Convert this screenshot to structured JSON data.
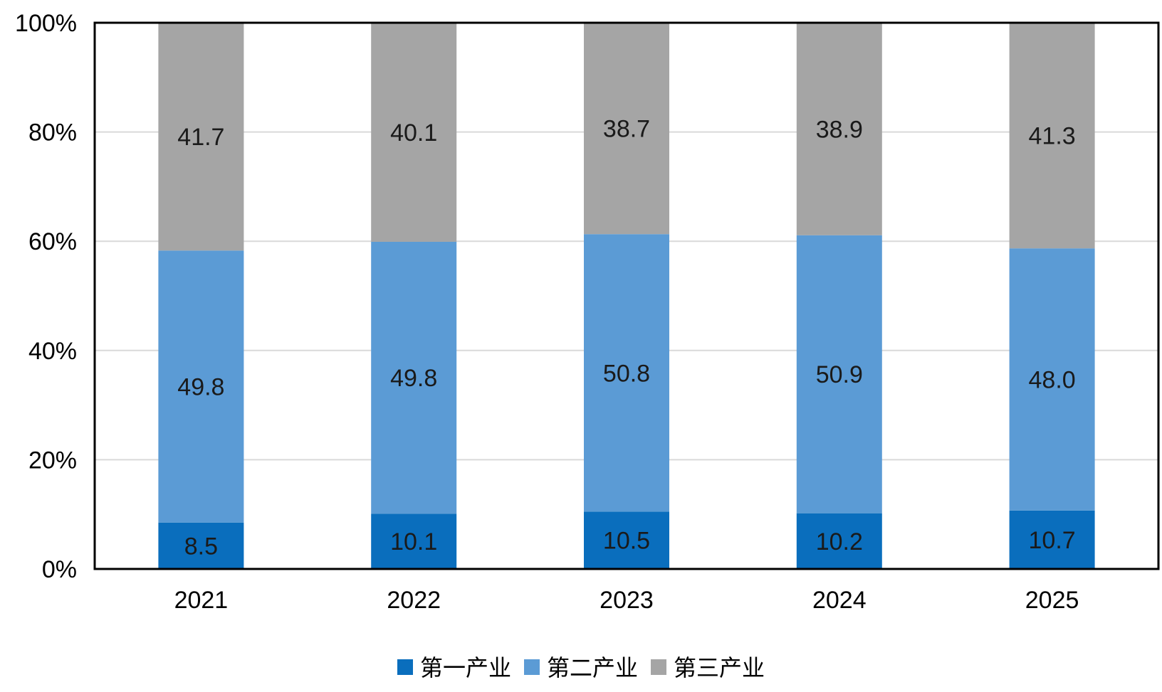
{
  "chart_data": {
    "type": "bar",
    "stacked": true,
    "percent_stacked": true,
    "categories": [
      "2021",
      "2022",
      "2023",
      "2024",
      "2025"
    ],
    "series": [
      {
        "name": "第一产业",
        "color": "#0A6EBD",
        "values": [
          8.5,
          10.1,
          10.5,
          10.2,
          10.7
        ]
      },
      {
        "name": "第二产业",
        "color": "#5B9BD5",
        "values": [
          49.8,
          49.8,
          50.8,
          50.9,
          48.0
        ]
      },
      {
        "name": "第三产业",
        "color": "#A5A5A5",
        "values": [
          41.7,
          40.1,
          38.7,
          38.9,
          41.3
        ]
      }
    ],
    "value_labels": [
      [
        "8.5",
        "10.1",
        "10.5",
        "10.2",
        "10.7"
      ],
      [
        "49.8",
        "49.8",
        "50.8",
        "50.9",
        "48.0"
      ],
      [
        "41.7",
        "40.1",
        "38.7",
        "38.9",
        "41.3"
      ]
    ],
    "y_ticks": [
      "0%",
      "20%",
      "40%",
      "60%",
      "80%",
      "100%"
    ],
    "ylim": [
      0,
      100
    ],
    "grid": true,
    "legend_position": "bottom-center",
    "title": "",
    "xlabel": "",
    "ylabel": ""
  }
}
